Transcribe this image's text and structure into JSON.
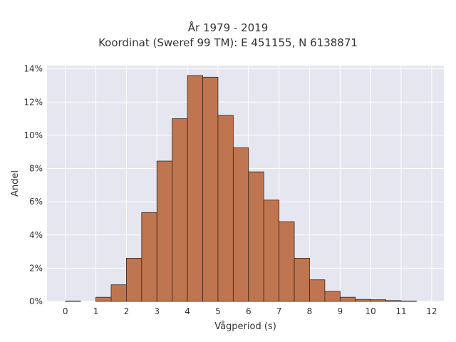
{
  "chart_data": {
    "type": "bar",
    "title": "År 1979 - 2019",
    "subtitle": "Koordinat (Sweref 99 TM): E 451155, N 6138871",
    "xlabel": "Vågperiod (s)",
    "ylabel": "Andel",
    "xlim": [
      -0.6,
      12.4
    ],
    "ylim": [
      0,
      14.2
    ],
    "y_unit": "%",
    "x_ticks": [
      0,
      1,
      2,
      3,
      4,
      5,
      6,
      7,
      8,
      9,
      10,
      11,
      12
    ],
    "x_tick_labels": [
      "0",
      "1",
      "2",
      "3",
      "4",
      "5",
      "6",
      "7",
      "8",
      "9",
      "10",
      "11",
      "12"
    ],
    "y_ticks": [
      0,
      2,
      4,
      6,
      8,
      10,
      12,
      14
    ],
    "y_tick_labels": [
      "0%",
      "2%",
      "4%",
      "6%",
      "8%",
      "10%",
      "12%",
      "14%"
    ],
    "bin_width": 0.5,
    "bins": [
      {
        "x0": 0.0,
        "x1": 0.5,
        "value": 0.02
      },
      {
        "x0": 1.0,
        "x1": 1.5,
        "value": 0.25
      },
      {
        "x0": 1.5,
        "x1": 2.0,
        "value": 1.0
      },
      {
        "x0": 2.0,
        "x1": 2.5,
        "value": 2.6
      },
      {
        "x0": 2.5,
        "x1": 3.0,
        "value": 5.35
      },
      {
        "x0": 3.0,
        "x1": 3.5,
        "value": 8.45
      },
      {
        "x0": 3.5,
        "x1": 4.0,
        "value": 11.0
      },
      {
        "x0": 4.0,
        "x1": 4.5,
        "value": 13.6
      },
      {
        "x0": 4.5,
        "x1": 5.0,
        "value": 13.5
      },
      {
        "x0": 5.0,
        "x1": 5.5,
        "value": 11.2
      },
      {
        "x0": 5.5,
        "x1": 6.0,
        "value": 9.25
      },
      {
        "x0": 6.0,
        "x1": 6.5,
        "value": 7.8
      },
      {
        "x0": 6.5,
        "x1": 7.0,
        "value": 6.1
      },
      {
        "x0": 7.0,
        "x1": 7.5,
        "value": 4.8
      },
      {
        "x0": 7.5,
        "x1": 8.0,
        "value": 2.6
      },
      {
        "x0": 8.0,
        "x1": 8.5,
        "value": 1.3
      },
      {
        "x0": 8.5,
        "x1": 9.0,
        "value": 0.6
      },
      {
        "x0": 9.0,
        "x1": 9.5,
        "value": 0.25
      },
      {
        "x0": 9.5,
        "x1": 10.0,
        "value": 0.12
      },
      {
        "x0": 10.0,
        "x1": 10.5,
        "value": 0.1
      },
      {
        "x0": 10.5,
        "x1": 11.0,
        "value": 0.05
      },
      {
        "x0": 11.0,
        "x1": 11.5,
        "value": 0.02
      }
    ],
    "grid": true,
    "colors": {
      "bar_fill": "#bf7650",
      "bar_stroke": "#3b2418",
      "plot_background": "#e5e6ef",
      "grid": "#ffffff"
    }
  }
}
